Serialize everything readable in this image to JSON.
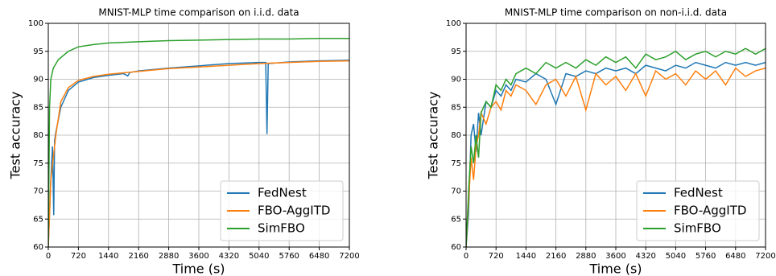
{
  "chart_data": [
    {
      "type": "line",
      "title": "MNIST-MLP time comparison on i.i.d. data",
      "xlabel": "Time (s)",
      "ylabel": "Test accuracy",
      "xlim": [
        0,
        7200
      ],
      "ylim": [
        60,
        100
      ],
      "xticks": [
        0,
        720,
        1440,
        2160,
        2880,
        3600,
        4320,
        5040,
        5760,
        6480,
        7200
      ],
      "yticks": [
        60,
        65,
        70,
        75,
        80,
        85,
        90,
        95,
        100
      ],
      "grid": true,
      "legend": "lower right",
      "series": [
        {
          "name": "FedNest",
          "color": "#1f77b4",
          "x": [
            0,
            60,
            100,
            130,
            150,
            180,
            300,
            480,
            720,
            1080,
            1440,
            1800,
            1900,
            1950,
            2160,
            2880,
            3600,
            4320,
            5040,
            5200,
            5230,
            5260,
            5760,
            6480,
            7200
          ],
          "values": [
            60,
            72,
            78,
            65.7,
            79,
            80.5,
            85,
            88,
            89.5,
            90.3,
            90.7,
            91,
            90.6,
            91.2,
            91.5,
            92,
            92.4,
            92.8,
            93,
            93,
            80.2,
            92.8,
            93.1,
            93.3,
            93.4
          ]
        },
        {
          "name": "FBO-AggITD",
          "color": "#ff7f0e",
          "x": [
            0,
            60,
            180,
            300,
            480,
            720,
            1080,
            1440,
            2160,
            2880,
            3600,
            4320,
            5040,
            5760,
            6480,
            7200
          ],
          "values": [
            60,
            72,
            80,
            86,
            88.5,
            89.8,
            90.5,
            90.9,
            91.4,
            91.9,
            92.2,
            92.5,
            92.8,
            93,
            93.2,
            93.3
          ]
        },
        {
          "name": "SimFBO",
          "color": "#2ca02c",
          "x": [
            0,
            30,
            60,
            120,
            240,
            480,
            720,
            1080,
            1440,
            2160,
            2880,
            3600,
            4320,
            5040,
            5760,
            6480,
            7200
          ],
          "values": [
            60,
            85,
            90,
            92,
            93.5,
            95,
            95.8,
            96.2,
            96.5,
            96.7,
            96.9,
            97,
            97.1,
            97.2,
            97.2,
            97.3,
            97.3
          ]
        }
      ]
    },
    {
      "type": "line",
      "title": "MNIST-MLP time comparison on non-i.i.d. data",
      "xlabel": "Time (s)",
      "ylabel": "Test accuracy",
      "xlim": [
        0,
        7200
      ],
      "ylim": [
        60,
        100
      ],
      "xticks": [
        0,
        720,
        1440,
        2160,
        2880,
        3600,
        4320,
        5040,
        5760,
        6480,
        7200
      ],
      "yticks": [
        60,
        65,
        70,
        75,
        80,
        85,
        90,
        95,
        100
      ],
      "grid": true,
      "legend": "lower right",
      "series": [
        {
          "name": "FedNest",
          "color": "#1f77b4",
          "x": [
            0,
            60,
            120,
            180,
            240,
            300,
            360,
            480,
            600,
            720,
            840,
            960,
            1080,
            1200,
            1440,
            1680,
            1920,
            2160,
            2400,
            2640,
            2880,
            3120,
            3360,
            3600,
            3840,
            4080,
            4320,
            4560,
            4800,
            5040,
            5280,
            5520,
            5760,
            6000,
            6240,
            6480,
            6720,
            6960,
            7200
          ],
          "values": [
            60,
            66,
            80,
            82,
            77,
            84,
            80,
            86,
            85,
            88,
            87,
            89,
            88,
            90,
            89.5,
            91,
            90,
            85.5,
            91,
            90.5,
            91.5,
            91,
            92,
            91.5,
            92,
            91,
            92.5,
            92,
            91.5,
            92.5,
            92,
            93,
            92.5,
            92,
            93,
            92.5,
            93,
            92.5,
            93
          ]
        },
        {
          "name": "FBO-AggITD",
          "color": "#ff7f0e",
          "x": [
            0,
            60,
            120,
            180,
            240,
            300,
            360,
            480,
            600,
            720,
            840,
            960,
            1080,
            1200,
            1440,
            1680,
            1920,
            2160,
            2400,
            2640,
            2880,
            3120,
            3360,
            3600,
            3840,
            4080,
            4320,
            4560,
            4800,
            5040,
            5280,
            5520,
            5760,
            6000,
            6240,
            6480,
            6720,
            6960,
            7200
          ],
          "values": [
            60,
            68,
            76,
            72,
            78,
            80,
            84,
            82,
            85,
            86,
            84.5,
            88,
            87,
            89,
            88,
            85.5,
            89,
            90,
            87,
            90.5,
            84.5,
            91,
            89,
            90.5,
            88,
            91,
            87,
            91.5,
            90,
            91,
            89,
            91.5,
            90,
            91.5,
            89,
            92,
            90.5,
            91.5,
            92
          ]
        },
        {
          "name": "SimFBO",
          "color": "#2ca02c",
          "x": [
            0,
            60,
            120,
            180,
            240,
            300,
            360,
            480,
            600,
            720,
            840,
            960,
            1080,
            1200,
            1440,
            1680,
            1920,
            2160,
            2400,
            2640,
            2880,
            3120,
            3360,
            3600,
            3840,
            4080,
            4320,
            4560,
            4800,
            5040,
            5280,
            5520,
            5760,
            6000,
            6240,
            6480,
            6720,
            6960,
            7200
          ],
          "values": [
            60,
            70,
            78,
            75,
            80,
            76,
            84,
            86,
            85,
            89,
            88,
            90,
            89,
            91,
            92,
            91,
            93,
            92,
            93,
            92,
            93.5,
            92.5,
            94,
            93,
            94,
            92,
            94.5,
            93.5,
            94,
            95,
            93.5,
            94.5,
            95,
            94,
            95,
            94.5,
            95.5,
            94.5,
            95.5
          ]
        }
      ]
    }
  ]
}
